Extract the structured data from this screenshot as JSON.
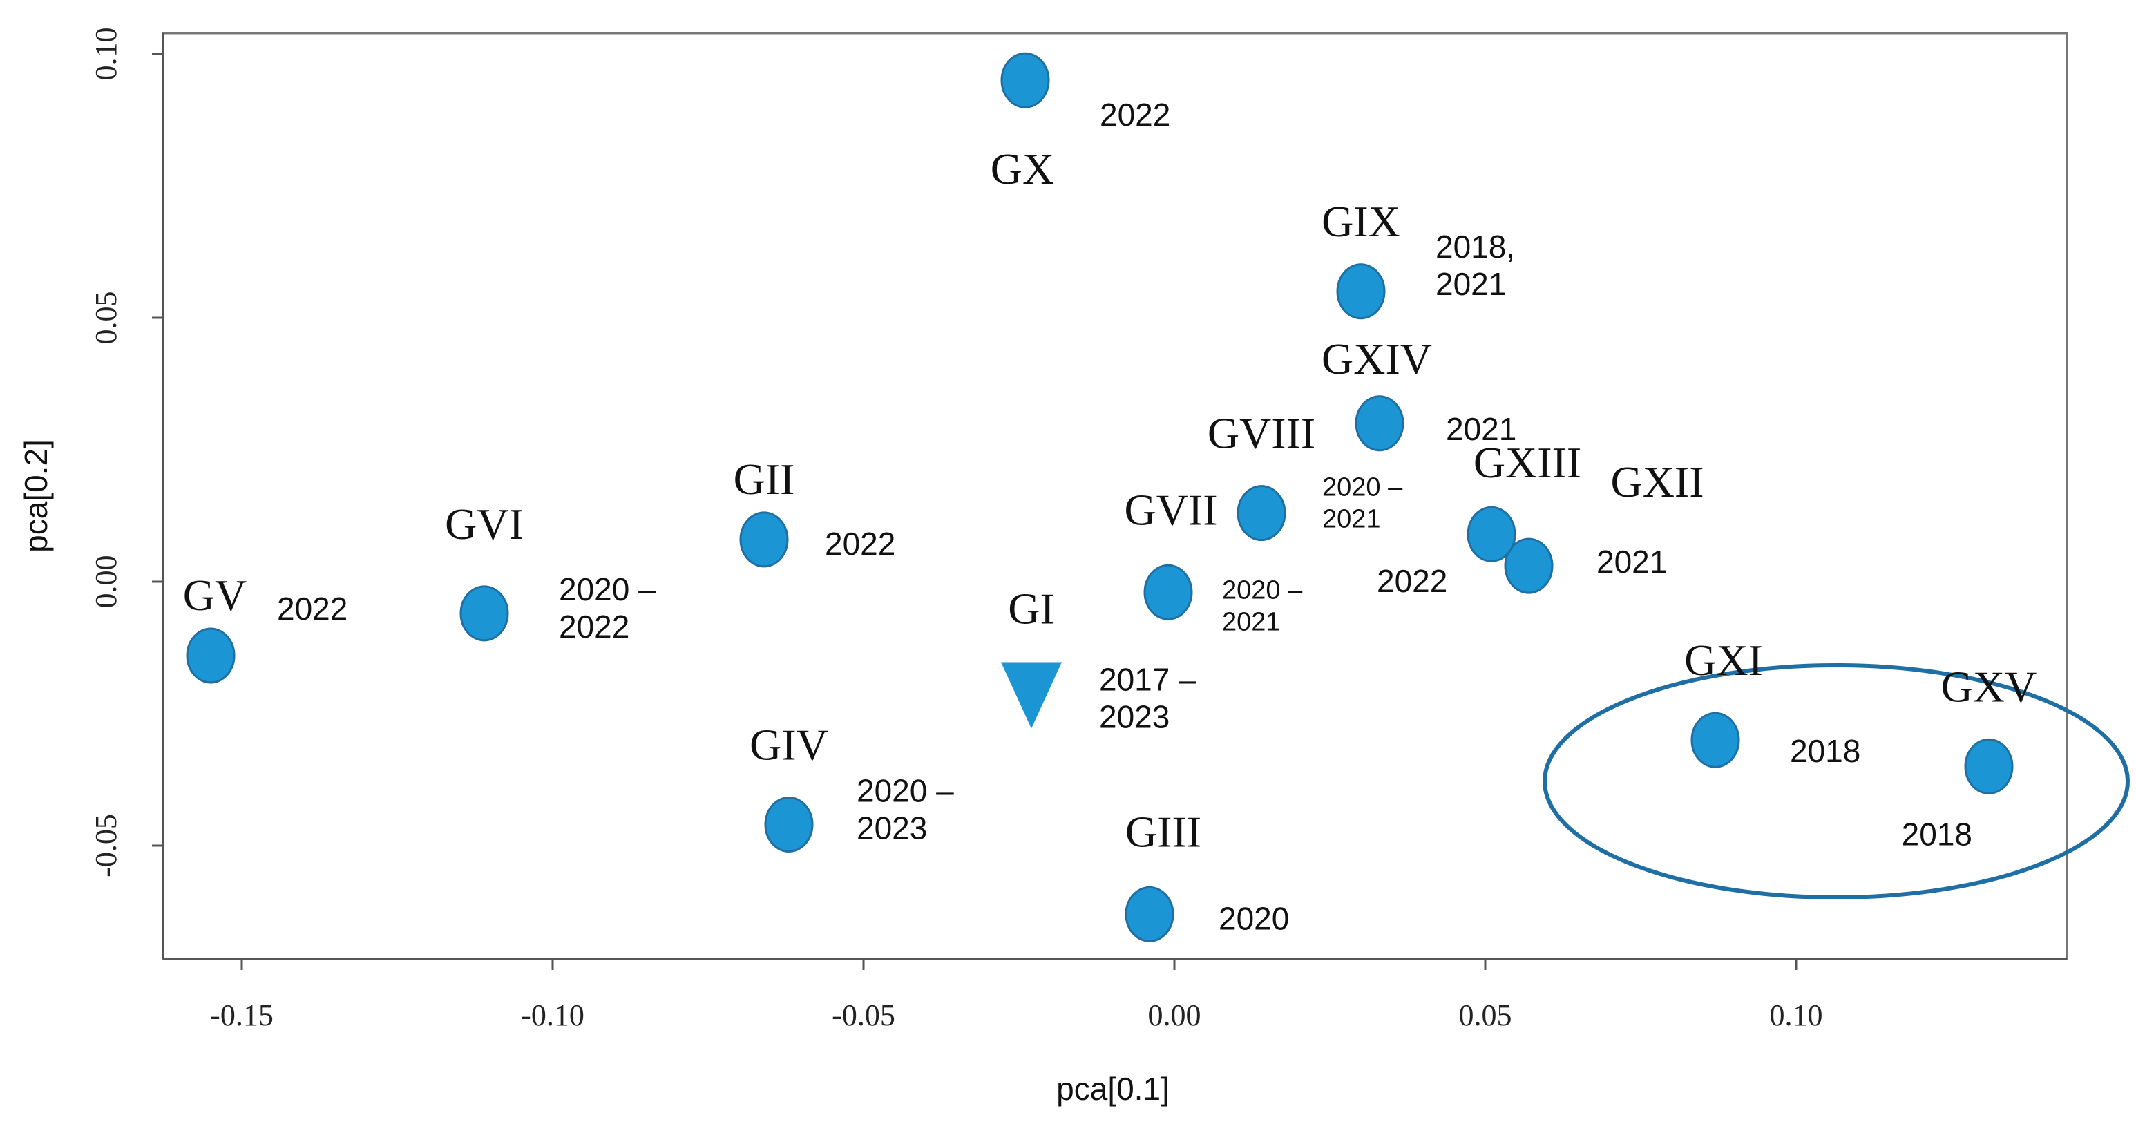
{
  "chart_data": {
    "type": "scatter",
    "title": "",
    "xlabel": "pca[0.1]",
    "ylabel": "pca[0.2]",
    "xlim": [
      -0.16,
      0.145
    ],
    "ylim": [
      -0.07,
      0.1
    ],
    "x_ticks": [
      {
        "value": -0.15,
        "label": "-0.15"
      },
      {
        "value": -0.1,
        "label": "-0.10"
      },
      {
        "value": -0.05,
        "label": "-0.05"
      },
      {
        "value": 0.0,
        "label": "0.00"
      },
      {
        "value": 0.05,
        "label": "0.05"
      },
      {
        "value": 0.1,
        "label": "0.10"
      }
    ],
    "y_ticks": [
      {
        "value": 0.1,
        "label": "0.10"
      },
      {
        "value": 0.05,
        "label": "0.05"
      },
      {
        "value": 0.0,
        "label": "0.00"
      },
      {
        "value": -0.05,
        "label": "-0.05"
      }
    ],
    "marker_color": "#1b95d3",
    "marker_edge_color": "#1f6fa4",
    "ellipse_color": "#1f6fa4",
    "points": [
      {
        "id": "GI",
        "x": -0.023,
        "y": -0.021,
        "marker": "triangle-down",
        "label": "GI",
        "years": [
          "2017 –",
          "2023"
        ]
      },
      {
        "id": "GII",
        "x": -0.066,
        "y": 0.008,
        "marker": "circle",
        "label": "GII",
        "years": [
          "2022"
        ]
      },
      {
        "id": "GIII",
        "x": -0.004,
        "y": -0.063,
        "marker": "circle",
        "label": "GIII",
        "years": [
          "2020"
        ]
      },
      {
        "id": "GIV",
        "x": -0.062,
        "y": -0.046,
        "marker": "circle",
        "label": "GIV",
        "years": [
          "2020 –",
          "2023"
        ]
      },
      {
        "id": "GV",
        "x": -0.155,
        "y": -0.014,
        "marker": "circle",
        "label": "GV",
        "years": [
          "2022"
        ]
      },
      {
        "id": "GVI",
        "x": -0.111,
        "y": -0.006,
        "marker": "circle",
        "label": "GVI",
        "years": [
          "2020 –",
          "2022"
        ]
      },
      {
        "id": "GVII",
        "x": -0.001,
        "y": -0.002,
        "marker": "circle",
        "label": "GVII",
        "years": [
          "2020 –",
          "2021"
        ]
      },
      {
        "id": "GVIII",
        "x": 0.014,
        "y": 0.013,
        "marker": "circle",
        "label": "GVIII",
        "years": [
          "2020 –",
          "2021"
        ]
      },
      {
        "id": "GIX",
        "x": 0.03,
        "y": 0.055,
        "marker": "circle",
        "label": "GIX",
        "years": [
          "2018,",
          "2021"
        ]
      },
      {
        "id": "GX",
        "x": -0.024,
        "y": 0.095,
        "marker": "circle",
        "label": "GX",
        "years": [
          "2022"
        ]
      },
      {
        "id": "GXI",
        "x": 0.087,
        "y": -0.03,
        "marker": "circle",
        "label": "GXI",
        "years": [
          "2018"
        ]
      },
      {
        "id": "GXII",
        "x": 0.057,
        "y": 0.003,
        "marker": "circle",
        "label": "GXII",
        "years": [
          "2021"
        ]
      },
      {
        "id": "GXIII",
        "x": 0.051,
        "y": 0.009,
        "marker": "circle",
        "label": "GXIII",
        "years": [
          "2022"
        ]
      },
      {
        "id": "GXIV",
        "x": 0.033,
        "y": 0.03,
        "marker": "circle",
        "label": "GXIV",
        "years": [
          "2021"
        ]
      },
      {
        "id": "GXV",
        "x": 0.131,
        "y": -0.035,
        "marker": "circle",
        "label": "GXV",
        "years": [
          "2018"
        ]
      }
    ],
    "annotations": [
      {
        "type": "ellipse",
        "encloses": [
          "GXI",
          "GXV"
        ]
      }
    ]
  }
}
